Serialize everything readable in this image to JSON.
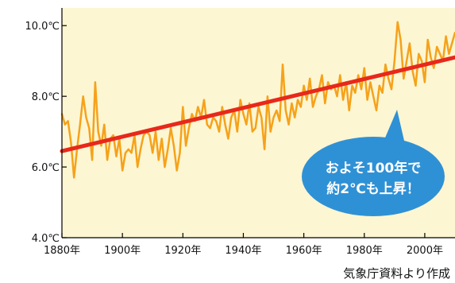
{
  "chart_data": {
    "type": "line",
    "title": "",
    "xlabel": "",
    "ylabel": "",
    "xlim": [
      1880,
      2010
    ],
    "ylim": [
      4.0,
      10.5
    ],
    "grid": false,
    "x_ticks": [
      {
        "value": 1880,
        "label": "1880年"
      },
      {
        "value": 1900,
        "label": "1900年"
      },
      {
        "value": 1920,
        "label": "1920年"
      },
      {
        "value": 1940,
        "label": "1940年"
      },
      {
        "value": 1960,
        "label": "1960年"
      },
      {
        "value": 1980,
        "label": "1980年"
      },
      {
        "value": 2000,
        "label": "2000年"
      }
    ],
    "y_ticks": [
      {
        "value": 4.0,
        "label": "4.0℃"
      },
      {
        "value": 6.0,
        "label": "6.0℃"
      },
      {
        "value": 8.0,
        "label": "8.0℃"
      },
      {
        "value": 10.0,
        "label": "10.0℃"
      }
    ],
    "series": [
      {
        "color": "#f5a21b",
        "x": [
          1880,
          1881,
          1882,
          1883,
          1884,
          1885,
          1886,
          1887,
          1888,
          1889,
          1890,
          1891,
          1892,
          1893,
          1894,
          1895,
          1896,
          1897,
          1898,
          1899,
          1900,
          1901,
          1902,
          1903,
          1904,
          1905,
          1906,
          1907,
          1908,
          1909,
          1910,
          1911,
          1912,
          1913,
          1914,
          1915,
          1916,
          1917,
          1918,
          1919,
          1920,
          1921,
          1922,
          1923,
          1924,
          1925,
          1926,
          1927,
          1928,
          1929,
          1930,
          1931,
          1932,
          1933,
          1934,
          1935,
          1936,
          1937,
          1938,
          1939,
          1940,
          1941,
          1942,
          1943,
          1944,
          1945,
          1946,
          1947,
          1948,
          1949,
          1950,
          1951,
          1952,
          1953,
          1954,
          1955,
          1956,
          1957,
          1958,
          1959,
          1960,
          1961,
          1962,
          1963,
          1964,
          1965,
          1966,
          1967,
          1968,
          1969,
          1970,
          1971,
          1972,
          1973,
          1974,
          1975,
          1976,
          1977,
          1978,
          1979,
          1980,
          1981,
          1982,
          1983,
          1984,
          1985,
          1986,
          1987,
          1988,
          1989,
          1990,
          1991,
          1992,
          1993,
          1994,
          1995,
          1996,
          1997,
          1998,
          1999,
          2000,
          2001,
          2002,
          2003,
          2004,
          2005,
          2006,
          2007,
          2008,
          2009,
          2010
        ],
        "values": [
          7.5,
          7.2,
          7.3,
          6.7,
          5.7,
          6.5,
          7.2,
          8.0,
          7.4,
          7.1,
          6.2,
          8.4,
          7.0,
          6.6,
          7.2,
          6.2,
          6.8,
          6.9,
          6.3,
          6.8,
          5.9,
          6.4,
          6.5,
          6.4,
          6.9,
          6.0,
          6.5,
          6.9,
          7.0,
          6.9,
          6.4,
          7.0,
          6.2,
          6.8,
          6.0,
          6.5,
          7.1,
          6.6,
          5.9,
          6.4,
          7.7,
          6.6,
          7.1,
          7.5,
          7.3,
          7.7,
          7.4,
          7.9,
          7.2,
          7.1,
          7.4,
          7.3,
          7.0,
          7.7,
          7.2,
          6.8,
          7.4,
          7.6,
          7.0,
          7.9,
          7.5,
          7.2,
          7.8,
          7.0,
          7.1,
          7.7,
          7.4,
          6.5,
          8.0,
          7.0,
          7.4,
          7.6,
          7.3,
          8.9,
          7.6,
          7.2,
          7.8,
          7.4,
          7.9,
          7.7,
          8.3,
          7.9,
          8.5,
          7.7,
          8.0,
          8.2,
          8.6,
          7.8,
          8.4,
          8.2,
          8.3,
          8.0,
          8.6,
          7.9,
          8.4,
          7.6,
          8.3,
          8.1,
          8.6,
          8.2,
          8.8,
          7.9,
          8.4,
          8.0,
          7.6,
          8.3,
          8.1,
          8.9,
          8.5,
          8.2,
          9.0,
          10.1,
          9.6,
          8.5,
          9.0,
          9.5,
          8.7,
          8.3,
          9.2,
          9.0,
          8.4,
          9.6,
          9.1,
          8.8,
          9.4,
          9.2,
          9.0,
          9.7,
          9.2,
          9.5,
          9.8
        ]
      },
      {
        "color": "#e8281b",
        "x": [
          1880,
          2010
        ],
        "values": [
          6.45,
          9.1
        ]
      }
    ],
    "annotations": [
      "およそ100年で",
      "約2℃も上昇！"
    ]
  },
  "source_note": "気象庁資料より作成"
}
